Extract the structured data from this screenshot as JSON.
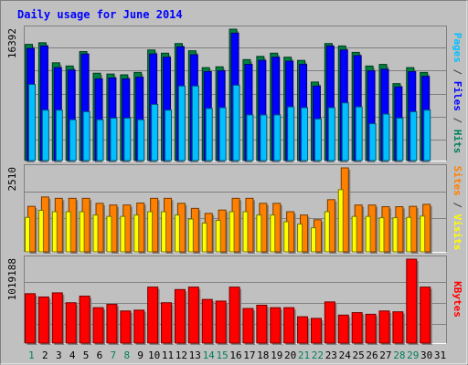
{
  "chart_data": [
    {
      "type": "bar",
      "title": "Daily usage for June 2014",
      "categories": [
        "1",
        "2",
        "3",
        "4",
        "5",
        "6",
        "7",
        "8",
        "9",
        "10",
        "11",
        "12",
        "13",
        "14",
        "15",
        "16",
        "17",
        "18",
        "19",
        "20",
        "21",
        "22",
        "23",
        "24",
        "25",
        "26",
        "27",
        "28",
        "29",
        "30",
        "31"
      ],
      "weekend_days": [
        "1",
        "7",
        "8",
        "14",
        "15",
        "21",
        "22",
        "28",
        "29"
      ],
      "ymax_label": "16392",
      "ylim": [
        0,
        16392
      ],
      "axis_label_parts": [
        {
          "text": "Pages",
          "color": "#00c0ff"
        },
        {
          "text": " / ",
          "color": "#404040"
        },
        {
          "text": "Files",
          "color": "#0000ff"
        },
        {
          "text": " / ",
          "color": "#404040"
        },
        {
          "text": "Hits",
          "color": "#00805c"
        }
      ],
      "series": [
        {
          "name": "Hits",
          "color": "#008040",
          "values": [
            14500,
            14700,
            12200,
            11800,
            13600,
            10900,
            10800,
            10700,
            11000,
            13800,
            13400,
            14600,
            13700,
            11600,
            11700,
            16392,
            12600,
            13000,
            13400,
            12900,
            12500,
            9800,
            14600,
            14300,
            13500,
            11800,
            12000,
            9600,
            11600,
            11000,
            null
          ]
        },
        {
          "name": "Files",
          "color": "#0000ff",
          "values": [
            14000,
            14300,
            11600,
            11300,
            13300,
            10200,
            10300,
            10200,
            10400,
            13300,
            12900,
            14200,
            13200,
            11100,
            11200,
            15900,
            12000,
            12500,
            12900,
            12400,
            12000,
            9300,
            14300,
            13800,
            13100,
            11200,
            11400,
            9200,
            11100,
            10500,
            null
          ]
        },
        {
          "name": "Pages",
          "color": "#00c0ff",
          "values": [
            9500,
            6300,
            6300,
            5100,
            6100,
            5100,
            5300,
            5300,
            5100,
            7000,
            6300,
            9300,
            9300,
            6500,
            6600,
            9400,
            5700,
            5700,
            5700,
            6700,
            6600,
            5200,
            6600,
            7200,
            6700,
            4600,
            5800,
            5300,
            6100,
            6300,
            null
          ]
        }
      ]
    },
    {
      "type": "bar",
      "categories": [
        "1",
        "2",
        "3",
        "4",
        "5",
        "6",
        "7",
        "8",
        "9",
        "10",
        "11",
        "12",
        "13",
        "14",
        "15",
        "16",
        "17",
        "18",
        "19",
        "20",
        "21",
        "22",
        "23",
        "24",
        "25",
        "26",
        "27",
        "28",
        "29",
        "30",
        "31"
      ],
      "ymax_label": "2510",
      "ylim": [
        0,
        2510
      ],
      "axis_label_parts": [
        {
          "text": "Sites",
          "color": "#ff8000"
        },
        {
          "text": " / ",
          "color": "#404040"
        },
        {
          "text": "Visits",
          "color": "#ffff00"
        }
      ],
      "series": [
        {
          "name": "Visits",
          "color": "#ff8000",
          "values": [
            1360,
            1640,
            1600,
            1600,
            1600,
            1450,
            1400,
            1400,
            1460,
            1600,
            1600,
            1450,
            1300,
            1150,
            1250,
            1600,
            1600,
            1450,
            1450,
            1200,
            1100,
            960,
            1560,
            2510,
            1400,
            1400,
            1350,
            1350,
            1360,
            1420,
            null
          ]
        },
        {
          "name": "Sites",
          "color": "#ffff00",
          "values": [
            1030,
            1240,
            1200,
            1200,
            1200,
            1100,
            1060,
            1060,
            1100,
            1200,
            1200,
            1100,
            980,
            860,
            940,
            1200,
            1200,
            1100,
            1100,
            900,
            830,
            720,
            1200,
            1860,
            1060,
            1060,
            1020,
            1020,
            1030,
            1070,
            null
          ]
        }
      ]
    },
    {
      "type": "bar",
      "categories": [
        "1",
        "2",
        "3",
        "4",
        "5",
        "6",
        "7",
        "8",
        "9",
        "10",
        "11",
        "12",
        "13",
        "14",
        "15",
        "16",
        "17",
        "18",
        "19",
        "20",
        "21",
        "22",
        "23",
        "24",
        "25",
        "26",
        "27",
        "28",
        "29",
        "30",
        "31"
      ],
      "ymax_label": "1019188",
      "ylim": [
        0,
        1019188
      ],
      "axis_label_parts": [
        {
          "text": "KBytes",
          "color": "#ff0000"
        }
      ],
      "series": [
        {
          "name": "KBytes",
          "color": "#ff0000",
          "values": [
            600000,
            560000,
            610000,
            490000,
            570000,
            430000,
            470000,
            390000,
            400000,
            680000,
            490000,
            650000,
            680000,
            530000,
            510000,
            680000,
            420000,
            460000,
            430000,
            430000,
            320000,
            300000,
            500000,
            340000,
            370000,
            350000,
            390000,
            380000,
            1019188,
            680000,
            null
          ]
        }
      ]
    }
  ]
}
